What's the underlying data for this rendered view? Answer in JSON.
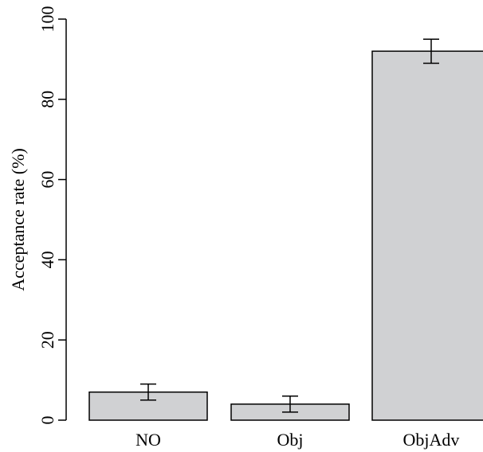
{
  "chart_data": {
    "type": "bar",
    "categories": [
      "NO",
      "Obj",
      "ObjAdv"
    ],
    "values": [
      7,
      4,
      92
    ],
    "error_low": [
      5,
      2,
      89
    ],
    "error_high": [
      9,
      6,
      95
    ],
    "title": "",
    "xlabel": "",
    "ylabel": "Acceptance rate (%)",
    "ylim": [
      0,
      100
    ],
    "yticks": [
      0,
      20,
      40,
      60,
      80,
      100
    ],
    "grid": false,
    "bar_color": "#d0d1d3",
    "bar_edge_color": "#000000"
  }
}
